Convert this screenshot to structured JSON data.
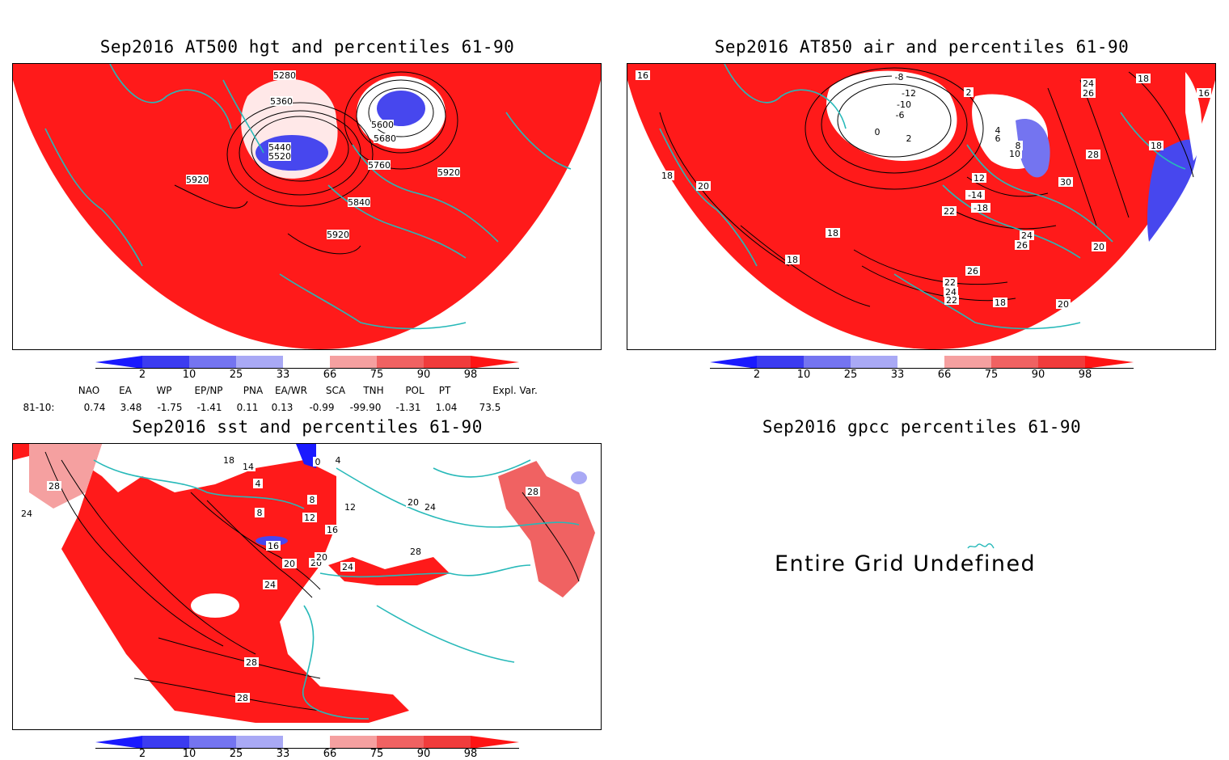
{
  "panels": {
    "hgt": {
      "title": "Sep2016 AT500 hgt and percentiles 61-90",
      "contour_labels": [
        "5280",
        "5360",
        "5440",
        "5520",
        "5600",
        "5680",
        "5760",
        "5840",
        "5920",
        "5920",
        "5920"
      ]
    },
    "air": {
      "title": "Sep2016 AT850 air and percentiles 61-90",
      "contour_labels": [
        "16",
        "18",
        "18",
        "18",
        "18",
        "20",
        "20",
        "20",
        "-8",
        "-12",
        "-10",
        "-6",
        "2",
        "0",
        "2",
        "24",
        "26",
        "28",
        "30",
        "12",
        "-14",
        "-18",
        "22",
        "22",
        "24",
        "26",
        "26",
        "24",
        "22",
        "18",
        "4",
        "6",
        "8",
        "10",
        "16",
        "18"
      ]
    },
    "sst": {
      "title": "Sep2016 sst and percentiles 61-90",
      "contour_labels": [
        "28",
        "24",
        "18",
        "14",
        "4",
        "0",
        "4",
        "8",
        "12",
        "16",
        "20",
        "24",
        "28",
        "28",
        "20",
        "24",
        "28",
        "8",
        "16",
        "20",
        "24",
        "20",
        "12",
        "28"
      ]
    },
    "gpcc": {
      "title": "Sep2016 gpcc percentiles 61-90",
      "message": "Entire Grid Undefined"
    }
  },
  "colorbar": {
    "labels": [
      "2",
      "10",
      "25",
      "33",
      "66",
      "75",
      "90",
      "98"
    ],
    "colors": [
      "#1a1aff",
      "#3c3cf0",
      "#7474f0",
      "#a9a9f5",
      "#ffffff",
      "#f5a0a0",
      "#f06262",
      "#f03c3c",
      "#ff1414"
    ]
  },
  "indices": {
    "headers": [
      "NAO",
      "EA",
      "WP",
      "EP/NP",
      "PNA",
      "EA/WR",
      "SCA",
      "TNH",
      "POL",
      "PT",
      "Expl. Var."
    ],
    "row_label": "81-10:",
    "values": [
      "0.74",
      "3.48",
      "-1.75",
      "-1.41",
      "0.11",
      "0.13",
      "-0.99",
      "-99.90",
      "-1.31",
      "1.04",
      "73.5"
    ]
  },
  "colors": {
    "coast": "#27b9b9",
    "warm": "#ff1a1a",
    "cool": "#4747ee"
  }
}
